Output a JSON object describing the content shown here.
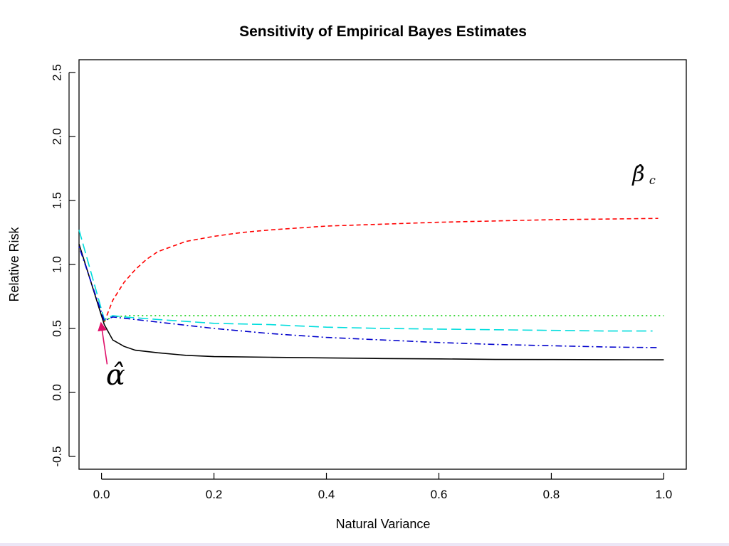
{
  "chart_data": {
    "type": "line",
    "title": "Sensitivity of Empirical Bayes Estimates",
    "xlabel": "Natural Variance",
    "ylabel": "Relative Risk",
    "xlim": [
      -0.04,
      1.04
    ],
    "ylim": [
      -0.6,
      2.6
    ],
    "x_ticks": [
      0.0,
      0.2,
      0.4,
      0.6,
      0.8,
      1.0
    ],
    "x_tick_labels": [
      "0.0",
      "0.2",
      "0.4",
      "0.6",
      "0.8",
      "1.0"
    ],
    "y_ticks": [
      -0.5,
      0.0,
      0.5,
      1.0,
      1.5,
      2.0,
      2.5
    ],
    "y_tick_labels": [
      "-0.5",
      "0.0",
      "0.5",
      "1.0",
      "1.5",
      "2.0",
      "2.5"
    ],
    "grid": false,
    "series": [
      {
        "color": "#000000",
        "style": "solid",
        "x": [
          -0.04,
          0.005,
          0.02,
          0.04,
          0.06,
          0.1,
          0.15,
          0.2,
          0.3,
          0.4,
          0.5,
          0.6,
          0.7,
          0.8,
          0.9,
          1.0
        ],
        "y": [
          1.16,
          0.53,
          0.41,
          0.36,
          0.33,
          0.31,
          0.29,
          0.28,
          0.275,
          0.27,
          0.265,
          0.262,
          0.258,
          0.257,
          0.256,
          0.255
        ]
      },
      {
        "color": "#ff0000",
        "style": "dashed",
        "x": [
          0.005,
          0.02,
          0.04,
          0.06,
          0.08,
          0.1,
          0.15,
          0.2,
          0.25,
          0.3,
          0.4,
          0.5,
          0.6,
          0.7,
          0.8,
          0.9,
          0.99
        ],
        "y": [
          0.55,
          0.72,
          0.86,
          0.96,
          1.04,
          1.1,
          1.18,
          1.22,
          1.25,
          1.27,
          1.3,
          1.315,
          1.33,
          1.34,
          1.35,
          1.355,
          1.36
        ]
      },
      {
        "color": "#00cc00",
        "style": "dotted",
        "x": [
          0.005,
          0.02,
          0.05,
          0.1,
          0.2,
          0.4,
          0.6,
          0.8,
          1.0
        ],
        "y": [
          0.56,
          0.59,
          0.6,
          0.6,
          0.6,
          0.6,
          0.6,
          0.6,
          0.6
        ]
      },
      {
        "color": "#00dddd",
        "style": "longdash",
        "x": [
          -0.04,
          0.005,
          0.02,
          0.04,
          0.1,
          0.2,
          0.3,
          0.4,
          0.5,
          0.6,
          0.7,
          0.8,
          0.9,
          0.98
        ],
        "y": [
          1.27,
          0.57,
          0.6,
          0.59,
          0.57,
          0.54,
          0.53,
          0.51,
          0.5,
          0.495,
          0.49,
          0.485,
          0.48,
          0.48
        ]
      },
      {
        "color": "#0000cc",
        "style": "dotdash",
        "x": [
          -0.04,
          0.005,
          0.02,
          0.04,
          0.1,
          0.2,
          0.3,
          0.4,
          0.5,
          0.6,
          0.7,
          0.8,
          0.9,
          0.99
        ],
        "y": [
          1.14,
          0.56,
          0.59,
          0.58,
          0.55,
          0.5,
          0.46,
          0.43,
          0.41,
          0.39,
          0.375,
          0.365,
          0.355,
          0.35
        ]
      }
    ],
    "annotations": [
      {
        "text": "α̂",
        "x": 0.025,
        "y": 0.06,
        "arrow": {
          "from": [
            0.01,
            0.22
          ],
          "to": [
            0.0,
            0.55
          ],
          "color": "#e0106a"
        }
      },
      {
        "text": "β̂",
        "subscript": "c",
        "x": 0.955,
        "y": 1.65
      }
    ]
  }
}
